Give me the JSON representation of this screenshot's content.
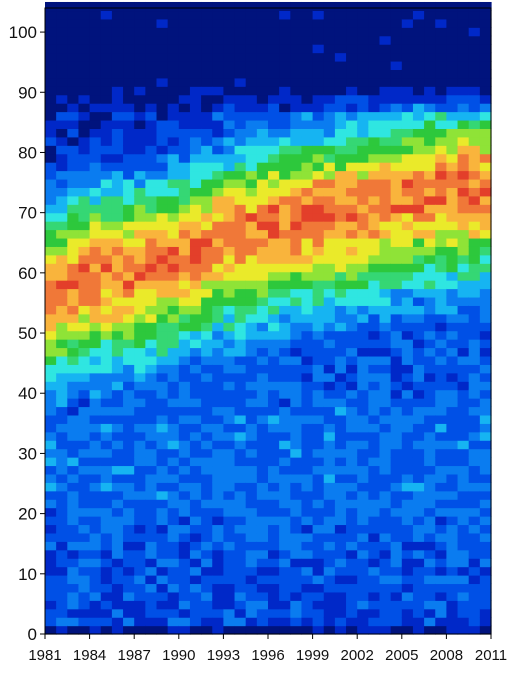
{
  "chart_data": {
    "type": "heatmap",
    "title": "",
    "xlabel": "",
    "ylabel": "",
    "x_ticks": [
      "1981",
      "1984",
      "1987",
      "1990",
      "1993",
      "1996",
      "1999",
      "2002",
      "2005",
      "2008",
      "2011"
    ],
    "y_ticks": [
      "0",
      "10",
      "20",
      "30",
      "40",
      "50",
      "60",
      "70",
      "80",
      "90",
      "100"
    ],
    "xlim": [
      1981,
      2011
    ],
    "ylim": [
      0,
      104
    ],
    "grid": false,
    "legend": "none",
    "colormap": [
      "#00137d",
      "#0028c8",
      "#0050e6",
      "#0a7cf0",
      "#16b4f2",
      "#2fe6e1",
      "#35d774",
      "#2dc83c",
      "#8fe337",
      "#eaea2a",
      "#f9b43c",
      "#f07838",
      "#e33f2a"
    ],
    "ridge_peak_age": [
      {
        "year": 1981,
        "age": 57
      },
      {
        "year": 1984,
        "age": 60
      },
      {
        "year": 1987,
        "age": 61
      },
      {
        "year": 1990,
        "age": 63
      },
      {
        "year": 1993,
        "age": 66
      },
      {
        "year": 1996,
        "age": 68
      },
      {
        "year": 1999,
        "age": 70
      },
      {
        "year": 2002,
        "age": 71
      },
      {
        "year": 2005,
        "age": 73
      },
      {
        "year": 2008,
        "age": 74
      },
      {
        "year": 2011,
        "age": 75
      }
    ]
  }
}
